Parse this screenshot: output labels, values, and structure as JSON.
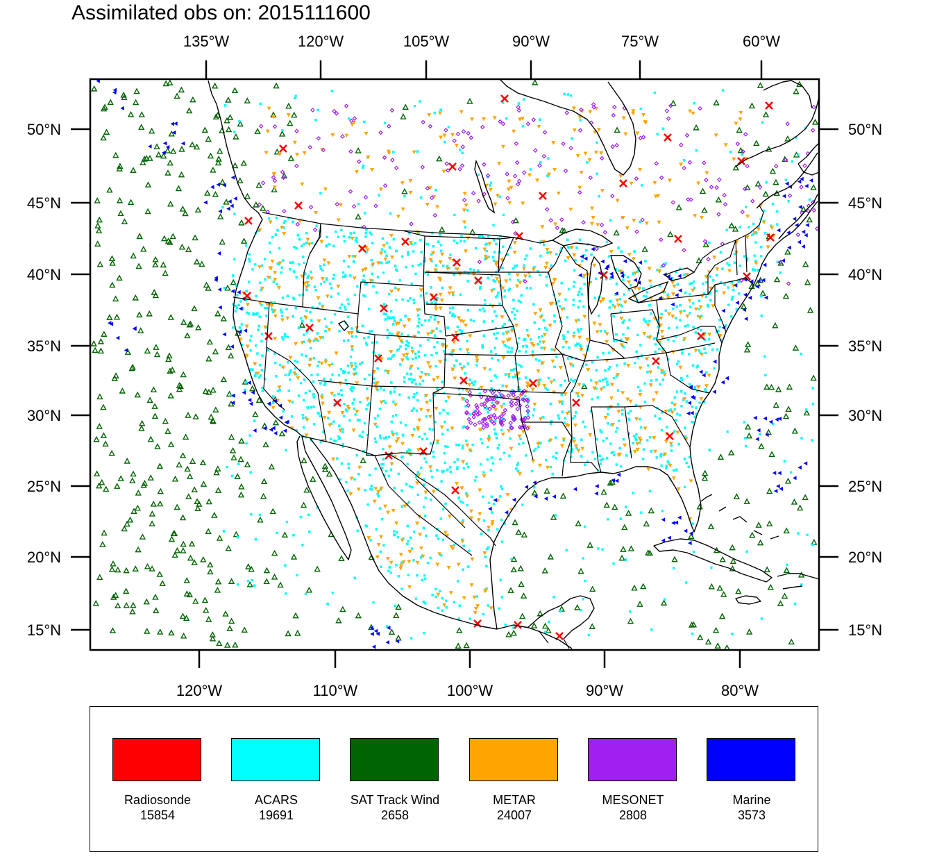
{
  "title": "Assimilated obs on: 2015111600",
  "map": {
    "top_axis_labels": [
      "135°W",
      "120°W",
      "105°W",
      "90°W",
      "75°W",
      "60°W"
    ],
    "bottom_axis_labels": [
      "120°W",
      "110°W",
      "100°W",
      "90°W",
      "80°W"
    ],
    "left_axis_labels": [
      "50°N",
      "45°N",
      "40°N",
      "35°N",
      "30°N",
      "25°N",
      "20°N",
      "15°N"
    ],
    "right_axis_labels": [
      "50°N",
      "45°N",
      "40°N",
      "35°N",
      "30°N",
      "25°N",
      "20°N",
      "15°N"
    ],
    "background_color": "#ffffff",
    "coastline_color": "#000000",
    "boundaries": [
      "coastlines",
      "US state borders",
      "country borders",
      "Great Lakes"
    ]
  },
  "legend": {
    "items": [
      {
        "name": "Radiosonde",
        "count": "15854",
        "color": "#ff0000",
        "marker": "x-mark"
      },
      {
        "name": "ACARS",
        "count": "19691",
        "color": "#00ffff",
        "marker": "square-dot"
      },
      {
        "name": "SAT Track Wind",
        "count": "2658",
        "color": "#006400",
        "marker": "hollow-triangle"
      },
      {
        "name": "METAR",
        "count": "24007",
        "color": "#ffa500",
        "marker": "down-triangle"
      },
      {
        "name": "MESONET",
        "count": "2808",
        "color": "#a020f0",
        "marker": "hollow-diamond"
      },
      {
        "name": "Marine",
        "count": "3573",
        "color": "#0000ff",
        "marker": "left-triangle"
      }
    ]
  }
}
